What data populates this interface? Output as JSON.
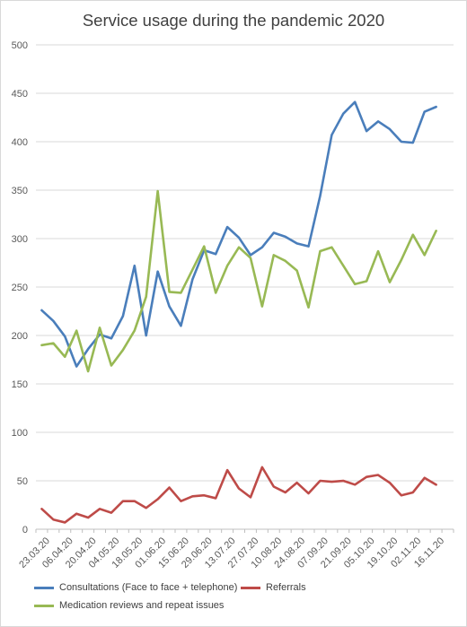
{
  "chart_data": {
    "type": "line",
    "title": "Service usage during the pandemic 2020",
    "xlabel": "",
    "ylabel": "",
    "ylim": [
      0,
      500
    ],
    "yticks": [
      0,
      50,
      100,
      150,
      200,
      250,
      300,
      350,
      400,
      450,
      500
    ],
    "grid": true,
    "legend_position": "bottom",
    "x": [
      "23.03.20",
      "30.03.20",
      "06.04.20",
      "13.04.20",
      "20.04.20",
      "27.04.20",
      "04.05.20",
      "11.05.20",
      "18.05.20",
      "25.05.20",
      "01.06.20",
      "08.06.20",
      "15.06.20",
      "22.06.20",
      "29.06.20",
      "06.07.20",
      "13.07.20",
      "20.07.20",
      "27.07.20",
      "03.08.20",
      "10.08.20",
      "17.08.20",
      "24.08.20",
      "31.08.20",
      "07.09.20",
      "14.09.20",
      "21.09.20",
      "28.09.20",
      "05.10.20",
      "12.10.20",
      "19.10.20",
      "26.10.20",
      "02.11.20",
      "09.11.20",
      "16.11.20",
      "23.11.20"
    ],
    "xtick_labels": [
      "23.03.20",
      "06.04.20",
      "20.04.20",
      "04.05.20",
      "18.05.20",
      "01.06.20",
      "15.06.20",
      "29.06.20",
      "13.07.20",
      "27.07.20",
      "10.08.20",
      "24.08.20",
      "07.09.20",
      "21.09.20",
      "05.10.20",
      "19.10.20",
      "02.11.20",
      "16.11.20"
    ],
    "series": [
      {
        "name": "Consultations (Face to face + telephone)",
        "color": "#4a7ebb",
        "values": [
          226,
          215,
          199,
          168,
          186,
          201,
          197,
          220,
          272,
          200,
          266,
          230,
          210,
          258,
          288,
          284,
          312,
          301,
          283,
          291,
          306,
          302,
          295,
          292,
          344,
          407,
          429,
          441,
          411,
          421,
          413,
          400,
          399,
          431,
          436,
          null
        ]
      },
      {
        "name": "Referrals",
        "color": "#be4b48",
        "values": [
          21,
          10,
          7,
          16,
          12,
          21,
          17,
          29,
          29,
          22,
          31,
          43,
          29,
          34,
          35,
          32,
          61,
          42,
          33,
          64,
          44,
          38,
          48,
          37,
          50,
          49,
          50,
          46,
          54,
          56,
          48,
          35,
          38,
          53,
          46,
          null
        ]
      },
      {
        "name": "Medication reviews and repeat issues",
        "color": "#98b954",
        "values": [
          190,
          192,
          178,
          205,
          163,
          208,
          169,
          185,
          205,
          240,
          349,
          245,
          244,
          268,
          292,
          244,
          272,
          291,
          280,
          230,
          283,
          277,
          267,
          229,
          287,
          291,
          272,
          253,
          256,
          287,
          255,
          278,
          304,
          283,
          308,
          null
        ]
      }
    ]
  }
}
